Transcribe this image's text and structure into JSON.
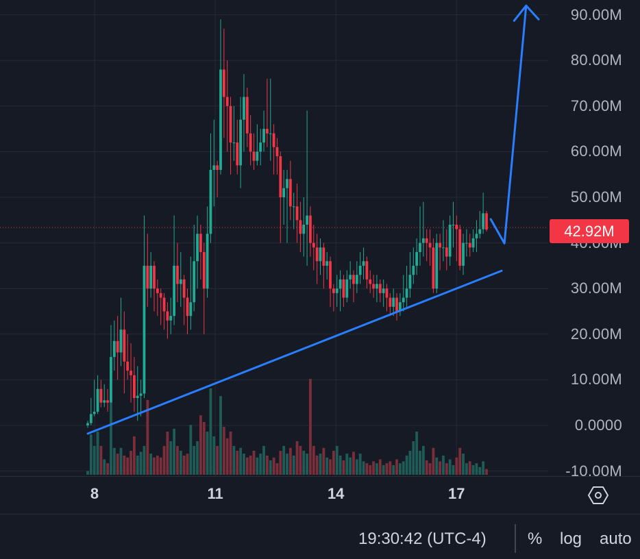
{
  "chart_data": {
    "type": "candlestick",
    "interval_hours": 2,
    "y_axis": {
      "ticks": [
        "90.00M",
        "80.00M",
        "70.00M",
        "60.00M",
        "50.00M",
        "40.00M",
        "30.00M",
        "20.00M",
        "10.00M",
        "0.0000",
        "-10.00M"
      ],
      "tick_values": [
        90,
        80,
        70,
        60,
        50,
        40,
        30,
        20,
        10,
        0,
        -10
      ],
      "unit": "M",
      "range": [
        -10,
        93
      ]
    },
    "x_axis": {
      "ticks": [
        "8",
        "11",
        "14",
        "17"
      ],
      "tick_days": [
        8,
        11,
        14,
        17
      ]
    },
    "grid": true,
    "last_price": {
      "label": "42.92M",
      "value": 42.92,
      "color": "#f23645"
    },
    "colors": {
      "up": "#22ab94",
      "down": "#f23645",
      "up_volume": "#1f5c57",
      "down_volume": "#7a2f3a",
      "annotation": "#2a7fff",
      "grid": "#252a36",
      "background": "#161a25"
    },
    "candles": {
      "open": [
        0,
        0.5,
        2.5,
        3,
        8,
        5,
        5.5,
        5,
        15,
        18.5,
        16,
        21,
        14,
        12,
        11,
        6,
        6.5,
        7,
        35,
        30,
        35,
        30,
        29,
        28,
        25,
        23,
        24,
        35,
        31,
        32,
        28,
        24,
        27,
        36,
        42,
        38,
        30,
        42,
        56,
        57,
        56,
        78,
        72,
        70,
        62,
        62,
        57,
        67,
        72,
        64,
        60,
        58,
        60,
        62,
        65,
        64,
        64,
        61,
        59,
        50,
        52,
        54,
        48,
        48,
        45,
        42,
        44,
        46,
        40,
        39,
        36,
        39,
        35,
        36,
        30,
        29,
        30,
        32,
        28,
        32,
        33,
        31,
        33,
        35,
        36,
        32,
        31,
        30,
        31,
        29,
        30,
        28,
        26,
        28,
        25,
        27,
        28,
        30,
        33,
        35,
        38,
        40,
        41,
        40,
        39,
        30,
        40,
        39,
        39,
        37,
        44,
        44,
        43,
        35,
        40,
        40,
        39,
        41,
        42,
        43,
        46.5
      ],
      "high": [
        1,
        6,
        10,
        11,
        10,
        9,
        8,
        22,
        23,
        24,
        28,
        25,
        20,
        18,
        15,
        13,
        10,
        46,
        42,
        38,
        36,
        32,
        30,
        29,
        27,
        28,
        46,
        40,
        38,
        33,
        30,
        37,
        44,
        46,
        44,
        40,
        48,
        64,
        67,
        58,
        89,
        87,
        80,
        72,
        70,
        67,
        72,
        77,
        74,
        68,
        64,
        66,
        65,
        69,
        76,
        76,
        66,
        63,
        60,
        56,
        56,
        58,
        51,
        53,
        49,
        50,
        69,
        48,
        44,
        42,
        41,
        40,
        38,
        37,
        31,
        33,
        34,
        33,
        34,
        36,
        34,
        36,
        38,
        39,
        37,
        34,
        33,
        33,
        32,
        32,
        31,
        29,
        30,
        29,
        29,
        33,
        35,
        38,
        39,
        41,
        48,
        49,
        43,
        43,
        41,
        42,
        42,
        45,
        43,
        46,
        49,
        46,
        44,
        42,
        43,
        42,
        43,
        45,
        47,
        51,
        47
      ],
      "low": [
        -0.5,
        0,
        2,
        2.5,
        4,
        4,
        3,
        5,
        12,
        10,
        13,
        7,
        10,
        5,
        3,
        1,
        2,
        6,
        26,
        28,
        25,
        24,
        22,
        21,
        19,
        20,
        22,
        27,
        26,
        22,
        20,
        21,
        25,
        30,
        32,
        20,
        28,
        40,
        48,
        50,
        55,
        63,
        60,
        55,
        58,
        55,
        52,
        60,
        61,
        57,
        56,
        57,
        57,
        60,
        61,
        58,
        55,
        55,
        40,
        44,
        40,
        45,
        43,
        40,
        38,
        37,
        35,
        37,
        34,
        31,
        33,
        30,
        32,
        26,
        25,
        26,
        25,
        26,
        27,
        30,
        27,
        29,
        31,
        32,
        30,
        29,
        28,
        27,
        27,
        26,
        25,
        24,
        24,
        23,
        24,
        25,
        26,
        28,
        31,
        33,
        35,
        37,
        36,
        35,
        29,
        29,
        34,
        36,
        34,
        35,
        39,
        36,
        34,
        33,
        37,
        37,
        38,
        38,
        41,
        42,
        42.5
      ],
      "close": [
        0.5,
        2.5,
        3,
        8,
        5,
        5.5,
        5,
        15,
        18.5,
        16,
        21,
        14,
        12,
        11,
        6,
        6.5,
        7,
        35,
        30,
        35,
        30,
        29,
        28,
        25,
        23,
        24,
        35,
        31,
        32,
        28,
        24,
        27,
        36,
        42,
        38,
        30,
        42,
        56,
        57,
        56,
        78,
        72,
        70,
        62,
        62,
        57,
        67,
        72,
        64,
        60,
        58,
        60,
        62,
        65,
        64,
        64,
        61,
        59,
        50,
        52,
        54,
        48,
        48,
        45,
        42,
        44,
        46,
        40,
        39,
        36,
        39,
        35,
        36,
        30,
        29,
        30,
        32,
        28,
        32,
        33,
        31,
        33,
        35,
        36,
        32,
        31,
        30,
        31,
        29,
        30,
        28,
        26,
        28,
        25,
        27,
        28,
        30,
        33,
        35,
        38,
        40,
        41,
        40,
        39,
        30,
        40,
        39,
        39,
        37,
        44,
        44,
        43,
        35,
        40,
        40,
        39,
        41,
        42,
        43,
        46.5,
        42.92
      ],
      "volume_relative": [
        4,
        42,
        30,
        45,
        30,
        16,
        12,
        75,
        28,
        22,
        28,
        20,
        18,
        25,
        40,
        20,
        24,
        30,
        78,
        22,
        18,
        20,
        18,
        30,
        45,
        35,
        48,
        30,
        25,
        20,
        22,
        52,
        30,
        35,
        62,
        55,
        45,
        90,
        40,
        30,
        82,
        50,
        38,
        45,
        30,
        25,
        28,
        22,
        18,
        20,
        25,
        18,
        22,
        30,
        20,
        15,
        18,
        12,
        25,
        30,
        22,
        28,
        20,
        35,
        30,
        25,
        22,
        100,
        30,
        20,
        22,
        28,
        18,
        16,
        25,
        30,
        20,
        15,
        22,
        18,
        24,
        16,
        22,
        14,
        12,
        10,
        14,
        12,
        16,
        10,
        12,
        14,
        10,
        16,
        12,
        14,
        20,
        25,
        35,
        45,
        25,
        30,
        15,
        12,
        28,
        18,
        14,
        20,
        12,
        16,
        10,
        18,
        28,
        22,
        12,
        14,
        10,
        12,
        8,
        14,
        6
      ]
    },
    "annotations": {
      "trendline": [
        [
          7.83,
          -1.8
        ],
        [
          18.12,
          33.9
        ]
      ],
      "arrow_path": [
        [
          17.85,
          45.2
        ],
        [
          18.19,
          39.9
        ],
        [
          18.73,
          92.0
        ]
      ],
      "arrow_head": [
        [
          18.43,
          88.7
        ],
        [
          18.73,
          92.0
        ],
        [
          19.04,
          89.0
        ]
      ]
    }
  },
  "footer": {
    "time": "19:30:42 (UTC-4)",
    "percent": "%",
    "log": "log",
    "auto": "auto"
  },
  "icons": {
    "settings": "hexagon-settings-icon"
  }
}
